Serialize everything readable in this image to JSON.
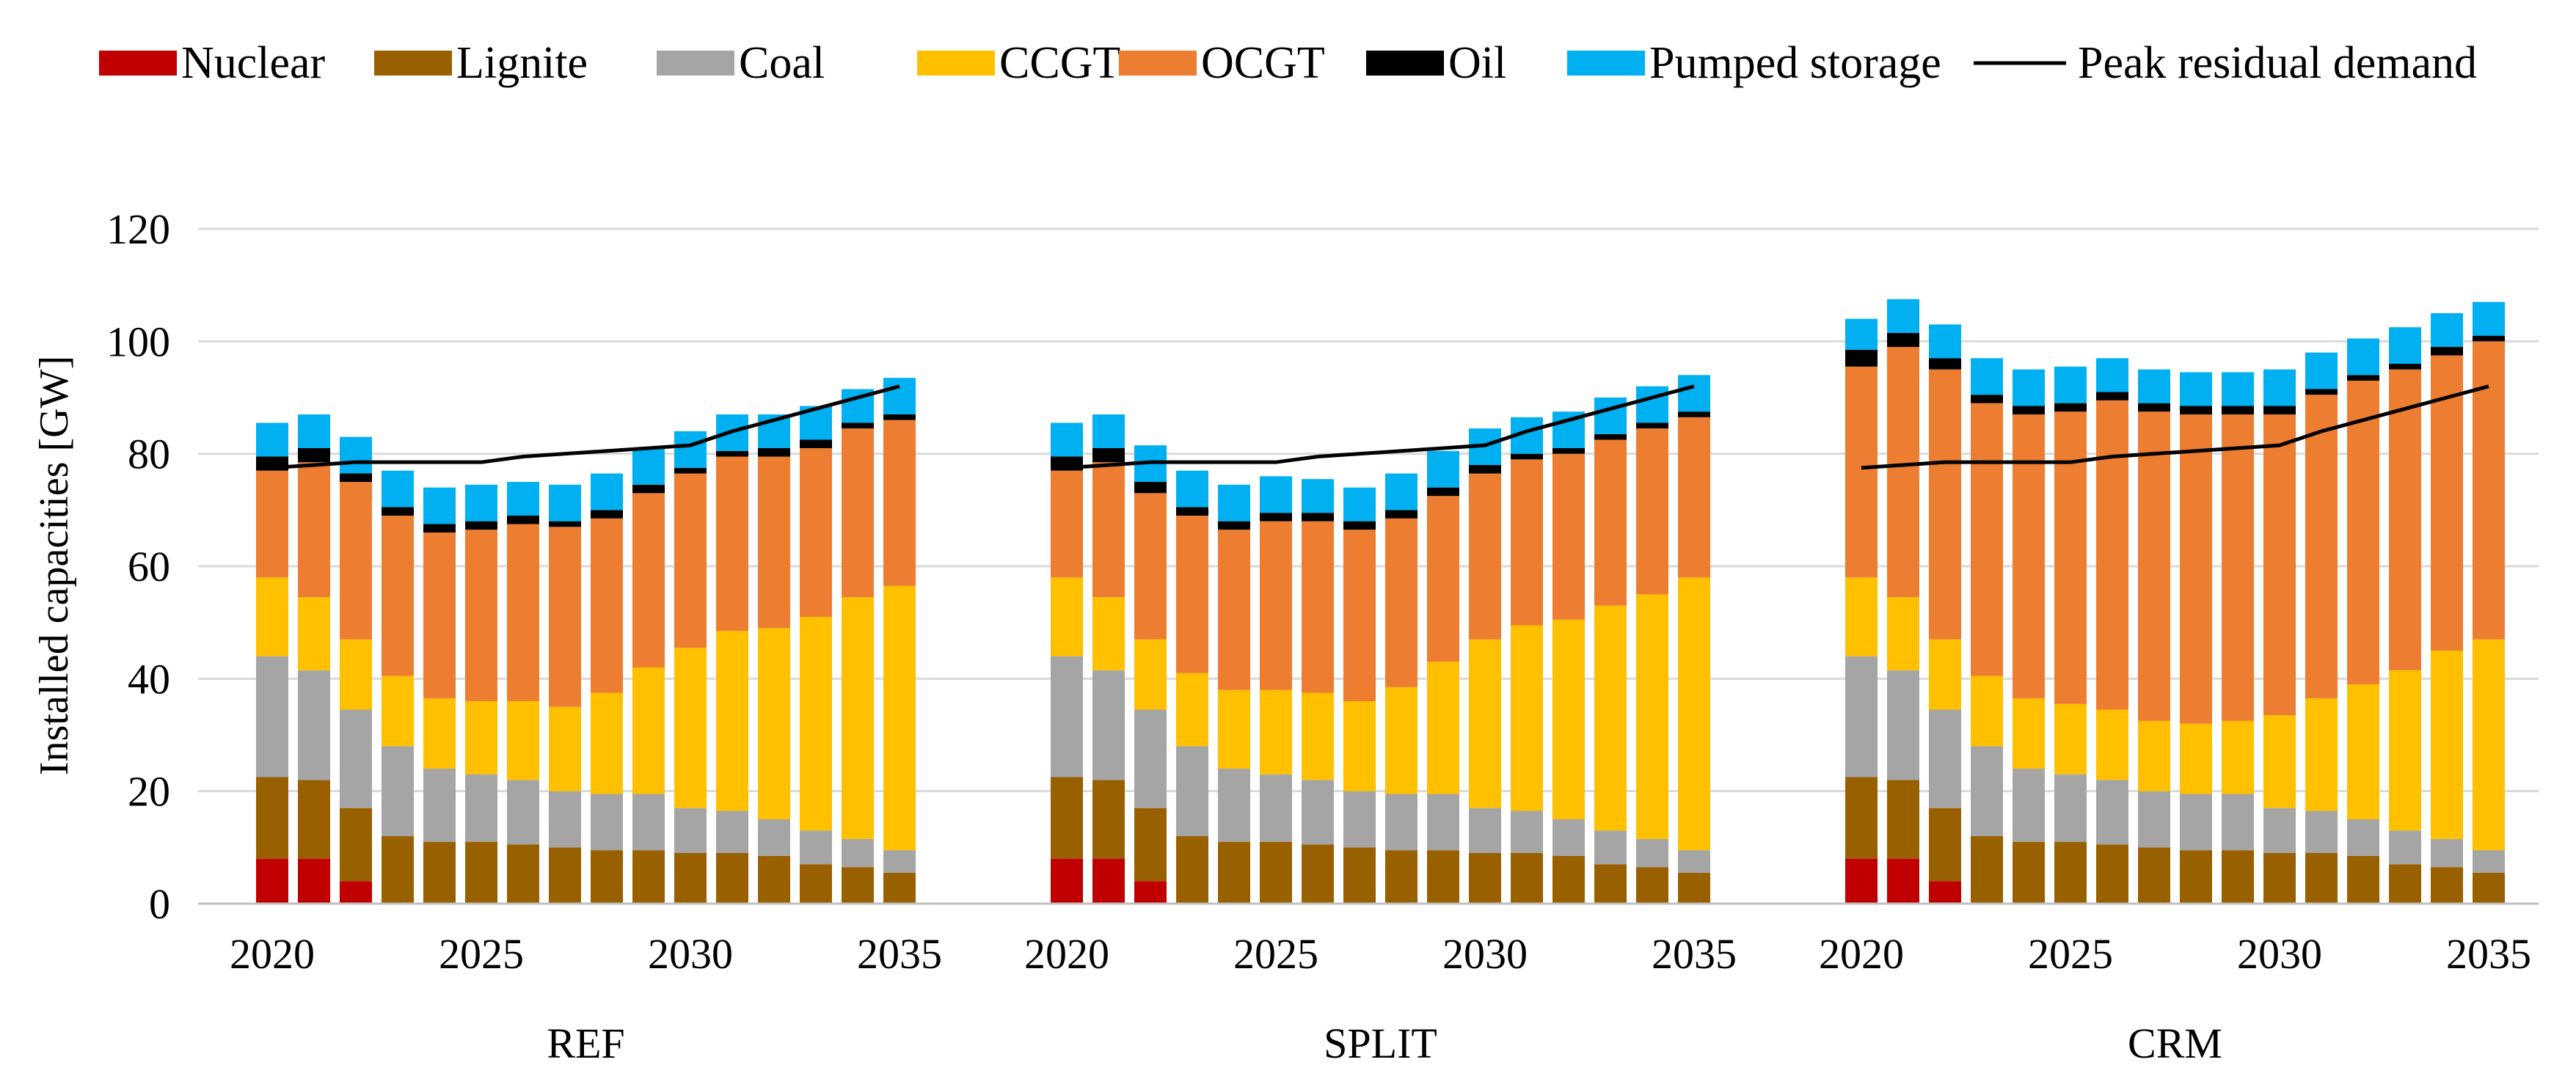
{
  "chart_data": {
    "type": "bar",
    "stacked": true,
    "ylabel": "Installed  capacities  [GW]",
    "ylim": [
      0,
      120
    ],
    "yticks": [
      0,
      20,
      40,
      60,
      80,
      100,
      120
    ],
    "grid": true,
    "legend_position": "top",
    "years": [
      2020,
      2021,
      2022,
      2023,
      2024,
      2025,
      2026,
      2027,
      2028,
      2029,
      2030,
      2031,
      2032,
      2033,
      2034,
      2035
    ],
    "xtick_labels": [
      "2020",
      "2025",
      "2030",
      "2035"
    ],
    "technologies": [
      {
        "name": "Nuclear",
        "color": "#C00000"
      },
      {
        "name": "Lignite",
        "color": "#996000"
      },
      {
        "name": "Coal",
        "color": "#A5A5A5"
      },
      {
        "name": "CCGT",
        "color": "#FFC000"
      },
      {
        "name": "OCGT",
        "color": "#ED7D31"
      },
      {
        "name": "Oil",
        "color": "#000000"
      },
      {
        "name": "Pumped storage",
        "color": "#00B0F0"
      }
    ],
    "line_series": {
      "name": "Peak residual demand",
      "color": "#000000"
    },
    "groups": [
      {
        "name": "REF",
        "stacks": {
          "Nuclear": [
            8,
            8,
            4,
            0,
            0,
            0,
            0,
            0,
            0,
            0,
            0,
            0,
            0,
            0,
            0,
            0
          ],
          "Lignite": [
            14.5,
            14,
            13,
            12,
            11,
            11,
            10.5,
            10,
            9.5,
            9.5,
            9,
            9,
            8.5,
            7,
            6.5,
            5.5
          ],
          "Coal": [
            21.5,
            19.5,
            17.5,
            16,
            13,
            12,
            11.5,
            10,
            10,
            10,
            8,
            7.5,
            6.5,
            6,
            5,
            4
          ],
          "CCGT": [
            14,
            13,
            12.5,
            12.5,
            12.5,
            13,
            14,
            15,
            18,
            22.5,
            28.5,
            32,
            34,
            38,
            43,
            47
          ],
          "OCGT": [
            19,
            24,
            28,
            28.5,
            29.5,
            30.5,
            31.5,
            32,
            31,
            31,
            31,
            31,
            30.5,
            30,
            30,
            29.5
          ],
          "Oil": [
            2.5,
            2.5,
            1.5,
            1.5,
            1.5,
            1.5,
            1.5,
            1,
            1.5,
            1.5,
            1,
            1,
            1.5,
            1.5,
            1,
            1
          ],
          "Pumped storage": [
            6,
            6,
            6.5,
            6.5,
            6.5,
            6.5,
            6,
            6.5,
            6.5,
            6.5,
            6.5,
            6.5,
            6,
            6,
            6,
            6.5
          ]
        },
        "peak_residual_demand": [
          77.5,
          78,
          78.5,
          78.5,
          78.5,
          78.5,
          79.5,
          80,
          80.5,
          81,
          81.5,
          84,
          86,
          88,
          90,
          92
        ]
      },
      {
        "name": "SPLIT",
        "stacks": {
          "Nuclear": [
            8,
            8,
            4,
            0,
            0,
            0,
            0,
            0,
            0,
            0,
            0,
            0,
            0,
            0,
            0,
            0
          ],
          "Lignite": [
            14.5,
            14,
            13,
            12,
            11,
            11,
            10.5,
            10,
            9.5,
            9.5,
            9,
            9,
            8.5,
            7,
            6.5,
            5.5
          ],
          "Coal": [
            21.5,
            19.5,
            17.5,
            16,
            13,
            12,
            11.5,
            10,
            10,
            10,
            8,
            7.5,
            6.5,
            6,
            5,
            4
          ],
          "CCGT": [
            14,
            13,
            12.5,
            13,
            14,
            15,
            15.5,
            16,
            19,
            23.5,
            30,
            33,
            35.5,
            40,
            43.5,
            48.5
          ],
          "OCGT": [
            19,
            24,
            26,
            28,
            28.5,
            30,
            30.5,
            30.5,
            30,
            29.5,
            29.5,
            29.5,
            29.5,
            29.5,
            29.5,
            28.5
          ],
          "Oil": [
            2.5,
            2.5,
            2,
            1.5,
            1.5,
            1.5,
            1.5,
            1.5,
            1.5,
            1.5,
            1.5,
            1,
            1,
            1,
            1,
            1
          ],
          "Pumped storage": [
            6,
            6,
            6.5,
            6.5,
            6.5,
            6.5,
            6,
            6,
            6.5,
            6.5,
            6.5,
            6.5,
            6.5,
            6.5,
            6.5,
            6.5
          ]
        },
        "peak_residual_demand": [
          77.5,
          78,
          78.5,
          78.5,
          78.5,
          78.5,
          79.5,
          80,
          80.5,
          81,
          81.5,
          84,
          86,
          88,
          90,
          92
        ]
      },
      {
        "name": "CRM",
        "stacks": {
          "Nuclear": [
            8,
            8,
            4,
            0,
            0,
            0,
            0,
            0,
            0,
            0,
            0,
            0,
            0,
            0,
            0,
            0
          ],
          "Lignite": [
            14.5,
            14,
            13,
            12,
            11,
            11,
            10.5,
            10,
            9.5,
            9.5,
            9,
            9,
            8.5,
            7,
            6.5,
            5.5
          ],
          "Coal": [
            21.5,
            19.5,
            17.5,
            16,
            13,
            12,
            11.5,
            10,
            10,
            10,
            8,
            7.5,
            6.5,
            6,
            5,
            4
          ],
          "CCGT": [
            14,
            13,
            12.5,
            12.5,
            12.5,
            12.5,
            12.5,
            12.5,
            12.5,
            13,
            16.5,
            20,
            24,
            28.5,
            33.5,
            37.5
          ],
          "OCGT": [
            37.5,
            44.5,
            48,
            48.5,
            50.5,
            52,
            55,
            55,
            55,
            54.5,
            53.5,
            54,
            54,
            53.5,
            52.5,
            53
          ],
          "Oil": [
            3,
            2.5,
            2,
            1.5,
            1.5,
            1.5,
            1.5,
            1.5,
            1.5,
            1.5,
            1.5,
            1,
            1,
            1,
            1.5,
            1
          ],
          "Pumped storage": [
            5.5,
            6,
            6,
            6.5,
            6.5,
            6.5,
            6,
            6,
            6,
            6,
            6.5,
            6.5,
            6.5,
            6.5,
            6,
            6
          ]
        },
        "peak_residual_demand": [
          77.5,
          78,
          78.5,
          78.5,
          78.5,
          78.5,
          79.5,
          80,
          80.5,
          81,
          81.5,
          84,
          86,
          88,
          90,
          92
        ]
      }
    ]
  }
}
